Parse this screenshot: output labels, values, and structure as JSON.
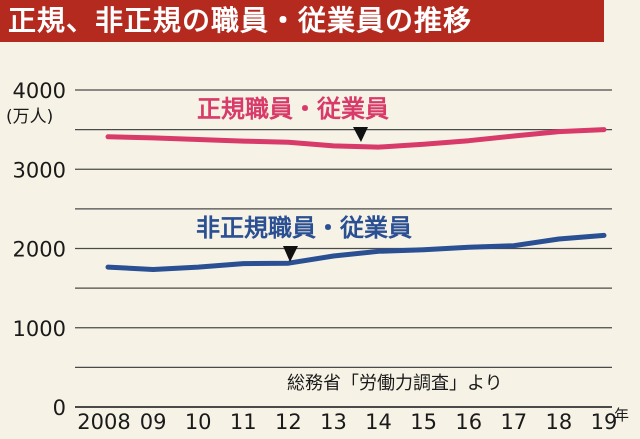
{
  "title": "正規、非正規の職員・従業員の推移",
  "unit_label": "(万人)",
  "source": "総務省「労働力調査」より",
  "year_suffix": "年",
  "colors": {
    "title_bg": "#b42a1e",
    "regular": "#d83a6a",
    "nonregular": "#2a4f93",
    "grid": "#4a4a4a",
    "background": "#f6f3e6"
  },
  "chart_data": {
    "type": "line",
    "title": "正規、非正規の職員・従業員の推移",
    "ylabel": "(万人)",
    "ylim": [
      0,
      4000
    ],
    "yticks": [
      "0",
      "1000",
      "2000",
      "3000",
      "4000"
    ],
    "categories": [
      "2008",
      "09",
      "10",
      "11",
      "12",
      "13",
      "14",
      "15",
      "16",
      "17",
      "18",
      "19"
    ],
    "series": [
      {
        "name": "正規職員・従業員",
        "values": [
          3410,
          3395,
          3375,
          3355,
          3340,
          3295,
          3280,
          3315,
          3360,
          3420,
          3475,
          3500
        ]
      },
      {
        "name": "非正規職員・従業員",
        "values": [
          1765,
          1735,
          1765,
          1810,
          1815,
          1905,
          1965,
          1985,
          2015,
          2035,
          2120,
          2165
        ]
      }
    ],
    "grid": true
  }
}
